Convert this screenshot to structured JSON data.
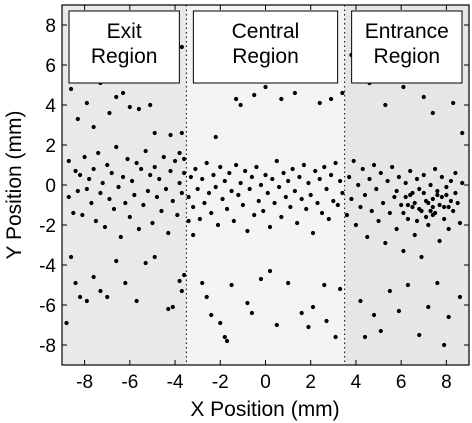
{
  "chart_data": {
    "type": "scatter",
    "xlabel": "X Position (mm)",
    "ylabel": "Y Position (mm)",
    "xlim": [
      -9,
      9
    ],
    "ylim": [
      -9,
      9
    ],
    "x_ticks": [
      -8,
      -6,
      -4,
      -2,
      0,
      2,
      4,
      6,
      8
    ],
    "y_ticks": [
      -8,
      -6,
      -4,
      -2,
      0,
      2,
      4,
      6,
      8
    ],
    "grid": false,
    "regions": [
      {
        "label_lines": [
          "Exit",
          "Region"
        ],
        "x_range": [
          -9,
          -3.5
        ],
        "color": "#e9e9e9"
      },
      {
        "label_lines": [
          "Central",
          "Region"
        ],
        "x_range": [
          -3.5,
          3.5
        ],
        "color": "#f4f4f4"
      },
      {
        "label_lines": [
          "Entrance",
          "Region"
        ],
        "x_range": [
          3.5,
          9
        ],
        "color": "#e6e6e6"
      }
    ],
    "region_boundaries": [
      -3.5,
      3.5
    ],
    "point_color": "#000000",
    "points_description_note": "",
    "points": [
      [
        -8.8,
        -6.9
      ],
      [
        -8.6,
        -3.6
      ],
      [
        -8.4,
        -4.9
      ],
      [
        -8.2,
        -5.6
      ],
      [
        -7.9,
        -5.8
      ],
      [
        -7.6,
        -4.6
      ],
      [
        -7.3,
        -5.3
      ],
      [
        -7.0,
        -5.6
      ],
      [
        -6.6,
        -3.8
      ],
      [
        -6.2,
        -4.9
      ],
      [
        -5.7,
        -5.8
      ],
      [
        -5.3,
        -3.9
      ],
      [
        -4.9,
        -3.6
      ],
      [
        -4.3,
        -6.2
      ],
      [
        -4.1,
        -6.1
      ],
      [
        -3.8,
        -4.8
      ],
      [
        -3.7,
        -5.3
      ],
      [
        -3.6,
        -4.5
      ],
      [
        -8.6,
        4.8
      ],
      [
        -8.3,
        3.3
      ],
      [
        -7.9,
        4.1
      ],
      [
        -7.6,
        2.9
      ],
      [
        -7.3,
        5.1
      ],
      [
        -6.9,
        3.6
      ],
      [
        -6.6,
        4.4
      ],
      [
        -6.3,
        4.6
      ],
      [
        -6.0,
        3.9
      ],
      [
        -5.6,
        3.8
      ],
      [
        -5.1,
        4.0
      ],
      [
        -4.9,
        2.6
      ],
      [
        -4.2,
        2.5
      ],
      [
        -3.8,
        1.6
      ],
      [
        -3.7,
        2.6
      ],
      [
        -3.6,
        1.3
      ],
      [
        -3.7,
        6.9
      ],
      [
        -3.4,
        -1.8
      ],
      [
        -3.2,
        -2.5
      ],
      [
        -3.0,
        5.7
      ],
      [
        -2.8,
        -4.9
      ],
      [
        -2.6,
        -5.6
      ],
      [
        -2.4,
        -6.5
      ],
      [
        -2.2,
        2.4
      ],
      [
        -2.0,
        -6.9
      ],
      [
        -1.8,
        -7.6
      ],
      [
        -1.7,
        -7.8
      ],
      [
        -1.5,
        -5.0
      ],
      [
        -1.3,
        4.3
      ],
      [
        -1.1,
        4.0
      ],
      [
        -0.8,
        -5.9
      ],
      [
        -0.6,
        -6.4
      ],
      [
        -0.5,
        4.5
      ],
      [
        -0.2,
        -4.7
      ],
      [
        0.0,
        4.9
      ],
      [
        0.2,
        -4.3
      ],
      [
        0.5,
        -7.0
      ],
      [
        0.7,
        4.3
      ],
      [
        1.0,
        -4.9
      ],
      [
        1.3,
        4.6
      ],
      [
        1.6,
        -6.4
      ],
      [
        1.9,
        -7.1
      ],
      [
        2.1,
        -6.1
      ],
      [
        2.4,
        4.1
      ],
      [
        2.6,
        -5.0
      ],
      [
        2.7,
        -6.8
      ],
      [
        2.9,
        4.3
      ],
      [
        3.1,
        -7.6
      ],
      [
        3.3,
        -5.2
      ],
      [
        3.4,
        4.6
      ],
      [
        3.8,
        6.5
      ],
      [
        4.0,
        5.3
      ],
      [
        4.2,
        -5.8
      ],
      [
        4.4,
        -7.6
      ],
      [
        4.6,
        5.1
      ],
      [
        4.8,
        -6.5
      ],
      [
        5.1,
        -7.3
      ],
      [
        5.3,
        4.0
      ],
      [
        5.5,
        -5.3
      ],
      [
        5.7,
        5.8
      ],
      [
        5.9,
        -6.3
      ],
      [
        6.1,
        4.9
      ],
      [
        6.3,
        -5.0
      ],
      [
        6.6,
        5.7
      ],
      [
        6.8,
        -7.5
      ],
      [
        7.0,
        4.4
      ],
      [
        7.2,
        -6.1
      ],
      [
        7.4,
        3.6
      ],
      [
        7.6,
        -4.9
      ],
      [
        7.9,
        -8.0
      ],
      [
        8.1,
        -6.6
      ],
      [
        8.3,
        4.1
      ],
      [
        8.6,
        -5.6
      ],
      [
        8.7,
        2.6
      ],
      [
        -8.7,
        1.2
      ],
      [
        -8.7,
        -0.6
      ],
      [
        -8.5,
        -1.4
      ],
      [
        -8.4,
        0.7
      ],
      [
        -8.3,
        -0.3
      ],
      [
        -8.2,
        0.5
      ],
      [
        -8.1,
        -1.5
      ],
      [
        -8.0,
        1.4
      ],
      [
        -7.9,
        -0.2
      ],
      [
        -7.8,
        0.3
      ],
      [
        -7.7,
        -0.9
      ],
      [
        -7.6,
        0.8
      ],
      [
        -7.5,
        -1.8
      ],
      [
        -7.4,
        1.6
      ],
      [
        -7.3,
        -0.4
      ],
      [
        -7.2,
        0.1
      ],
      [
        -7.1,
        -2.1
      ],
      [
        -7.0,
        1.0
      ],
      [
        -6.9,
        -0.7
      ],
      [
        -6.8,
        0.6
      ],
      [
        -6.7,
        -1.2
      ],
      [
        -6.6,
        1.9
      ],
      [
        -6.5,
        -0.1
      ],
      [
        -6.4,
        -2.6
      ],
      [
        -6.3,
        0.4
      ],
      [
        -6.2,
        -0.9
      ],
      [
        -6.1,
        1.3
      ],
      [
        -6.0,
        -1.6
      ],
      [
        -5.9,
        0.2
      ],
      [
        -5.8,
        -0.5
      ],
      [
        -5.7,
        1.1
      ],
      [
        -5.6,
        -2.2
      ],
      [
        -5.5,
        0.8
      ],
      [
        -5.4,
        -1.0
      ],
      [
        -5.3,
        1.7
      ],
      [
        -5.2,
        -0.3
      ],
      [
        -5.1,
        0.5
      ],
      [
        -5.0,
        -1.9
      ],
      [
        -4.9,
        0.9
      ],
      [
        -4.8,
        -0.6
      ],
      [
        -4.7,
        0.3
      ],
      [
        -4.6,
        -1.3
      ],
      [
        -4.5,
        1.4
      ],
      [
        -4.4,
        -0.2
      ],
      [
        -4.3,
        -2.4
      ],
      [
        -4.2,
        0.7
      ],
      [
        -4.1,
        -0.8
      ],
      [
        -4.0,
        1.2
      ],
      [
        -3.9,
        -1.5
      ],
      [
        -3.8,
        0.1
      ],
      [
        -3.7,
        -0.4
      ],
      [
        -3.6,
        0.6
      ],
      [
        -3.4,
        -0.6
      ],
      [
        -3.3,
        0.4
      ],
      [
        -3.2,
        -1.1
      ],
      [
        -3.1,
        0.8
      ],
      [
        -3.0,
        -0.2
      ],
      [
        -2.9,
        -1.7
      ],
      [
        -2.8,
        0.3
      ],
      [
        -2.7,
        -0.9
      ],
      [
        -2.6,
        1.1
      ],
      [
        -2.5,
        -0.4
      ],
      [
        -2.4,
        -1.4
      ],
      [
        -2.3,
        0.5
      ],
      [
        -2.2,
        -0.1
      ],
      [
        -2.1,
        -2.0
      ],
      [
        -2.0,
        0.9
      ],
      [
        -1.9,
        -0.7
      ],
      [
        -1.8,
        0.2
      ],
      [
        -1.7,
        -1.2
      ],
      [
        -1.6,
        0.6
      ],
      [
        -1.5,
        -0.3
      ],
      [
        -1.4,
        -1.8
      ],
      [
        -1.3,
        1.0
      ],
      [
        -1.2,
        -0.5
      ],
      [
        -1.1,
        0.1
      ],
      [
        -1.0,
        -1.0
      ],
      [
        -0.9,
        0.7
      ],
      [
        -0.8,
        -2.3
      ],
      [
        -0.7,
        -0.2
      ],
      [
        -0.6,
        0.4
      ],
      [
        -0.5,
        -1.5
      ],
      [
        -0.4,
        0.9
      ],
      [
        -0.3,
        -0.8
      ],
      [
        -0.2,
        0.0
      ],
      [
        -0.1,
        -1.3
      ],
      [
        0.0,
        0.5
      ],
      [
        0.1,
        -0.4
      ],
      [
        0.2,
        -2.1
      ],
      [
        0.3,
        0.3
      ],
      [
        0.4,
        -0.9
      ],
      [
        0.5,
        1.2
      ],
      [
        0.6,
        -0.1
      ],
      [
        0.7,
        -1.6
      ],
      [
        0.8,
        0.6
      ],
      [
        0.9,
        -0.6
      ],
      [
        1.0,
        0.2
      ],
      [
        1.1,
        -1.1
      ],
      [
        1.2,
        0.8
      ],
      [
        1.3,
        -0.3
      ],
      [
        1.4,
        -1.9
      ],
      [
        1.5,
        0.4
      ],
      [
        1.6,
        -0.7
      ],
      [
        1.7,
        1.0
      ],
      [
        1.8,
        -1.2
      ],
      [
        1.9,
        0.1
      ],
      [
        2.0,
        -0.5
      ],
      [
        2.1,
        -2.4
      ],
      [
        2.2,
        0.7
      ],
      [
        2.3,
        -0.9
      ],
      [
        2.4,
        0.3
      ],
      [
        2.5,
        -1.4
      ],
      [
        2.6,
        0.9
      ],
      [
        2.7,
        -0.2
      ],
      [
        2.8,
        -1.7
      ],
      [
        2.9,
        0.5
      ],
      [
        3.0,
        -0.8
      ],
      [
        3.1,
        1.1
      ],
      [
        3.2,
        -1.0
      ],
      [
        3.3,
        0.2
      ],
      [
        3.4,
        -0.4
      ],
      [
        3.6,
        -1.5
      ],
      [
        3.7,
        0.4
      ],
      [
        3.8,
        -0.7
      ],
      [
        3.9,
        1.2
      ],
      [
        4.0,
        -2.0
      ],
      [
        4.1,
        0.0
      ],
      [
        4.2,
        -1.1
      ],
      [
        4.3,
        0.8
      ],
      [
        4.4,
        -0.5
      ],
      [
        4.5,
        -2.6
      ],
      [
        4.6,
        0.3
      ],
      [
        4.7,
        -1.3
      ],
      [
        4.8,
        1.0
      ],
      [
        4.9,
        -0.2
      ],
      [
        5.0,
        -1.8
      ],
      [
        5.1,
        0.6
      ],
      [
        5.2,
        -0.9
      ],
      [
        5.3,
        -2.9
      ],
      [
        5.4,
        0.2
      ],
      [
        5.5,
        -1.4
      ],
      [
        5.6,
        0.9
      ],
      [
        5.7,
        -0.6
      ],
      [
        5.8,
        -2.2
      ],
      [
        5.9,
        0.4
      ],
      [
        6.0,
        -1.0
      ],
      [
        6.1,
        -3.3
      ],
      [
        6.2,
        0.1
      ],
      [
        6.3,
        -1.7
      ],
      [
        6.4,
        0.7
      ],
      [
        6.5,
        -0.4
      ],
      [
        6.6,
        -2.5
      ],
      [
        6.7,
        0.3
      ],
      [
        6.8,
        -1.2
      ],
      [
        6.9,
        -3.6
      ],
      [
        7.0,
        0.5
      ],
      [
        7.1,
        -0.8
      ],
      [
        7.2,
        -2.0
      ],
      [
        7.3,
        0.0
      ],
      [
        7.4,
        -1.5
      ],
      [
        7.5,
        0.8
      ],
      [
        7.6,
        -0.3
      ],
      [
        7.7,
        -2.8
      ],
      [
        7.8,
        0.4
      ],
      [
        7.9,
        -1.1
      ],
      [
        8.0,
        -0.5
      ],
      [
        8.1,
        -2.2
      ],
      [
        8.2,
        0.2
      ],
      [
        8.3,
        -1.3
      ],
      [
        8.4,
        0.6
      ],
      [
        8.5,
        -0.9
      ],
      [
        8.6,
        -1.9
      ],
      [
        8.7,
        0.1
      ],
      [
        6.2,
        -0.6
      ],
      [
        6.5,
        -1.1
      ],
      [
        6.8,
        -0.2
      ],
      [
        7.1,
        -1.6
      ],
      [
        7.4,
        -0.7
      ],
      [
        7.7,
        -1.0
      ],
      [
        8.0,
        -0.1
      ],
      [
        6.6,
        -0.9
      ],
      [
        7.0,
        -0.4
      ],
      [
        7.3,
        -1.3
      ],
      [
        7.6,
        -0.5
      ],
      [
        7.9,
        -1.7
      ],
      [
        8.2,
        -0.8
      ],
      [
        5.8,
        -0.3
      ],
      [
        6.1,
        -1.4
      ],
      [
        6.4,
        -0.5
      ],
      [
        6.7,
        -1.8
      ],
      [
        7.2,
        -0.9
      ],
      [
        7.5,
        -1.4
      ],
      [
        7.8,
        -0.6
      ],
      [
        8.1,
        -1.1
      ],
      [
        8.4,
        -0.4
      ],
      [
        6.3,
        -1.0
      ],
      [
        6.9,
        -1.3
      ],
      [
        7.4,
        -1.1
      ]
    ]
  }
}
